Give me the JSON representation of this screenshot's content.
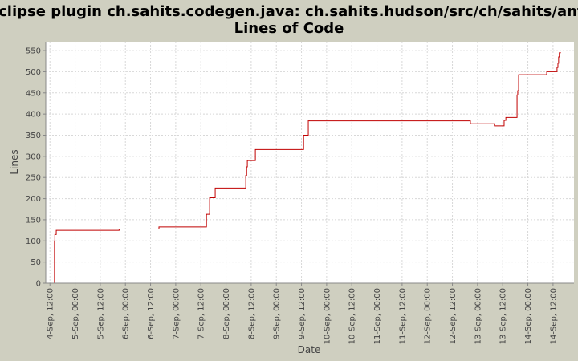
{
  "chart_data": {
    "type": "step",
    "title": "Eclipse plugin ch.sahits.codegen.java: ch.sahits.hudson/src/ch/sahits/ant/",
    "subtitle": "Lines of Code",
    "x_label": "Date",
    "y_label": "Lines",
    "x": [
      "4-Sep, 14:00",
      "4-Sep, 14:10",
      "4-Sep, 14:20",
      "4-Sep, 15:00",
      "5-Sep, 21:00",
      "6-Sep, 16:00",
      "7-Sep, 14:40",
      "7-Sep, 16:10",
      "7-Sep, 18:50",
      "8-Sep, 09:25",
      "8-Sep, 09:50",
      "8-Sep, 10:10",
      "8-Sep, 14:00",
      "9-Sep, 13:00",
      "9-Sep, 15:15",
      "9-Sep, 15:40",
      "12-Sep, 20:35",
      "13-Sep, 08:00",
      "13-Sep, 12:40",
      "13-Sep, 13:30",
      "13-Sep, 18:50",
      "13-Sep, 19:10",
      "13-Sep, 19:35",
      "14-Sep, 09:00",
      "14-Sep, 13:55",
      "14-Sep, 14:20",
      "14-Sep, 14:40",
      "14-Sep, 15:00",
      "14-Sep, 15:45"
    ],
    "series": [
      {
        "name": "Lines",
        "color": "#c00000",
        "values": [
          0,
          100,
          115,
          125,
          128,
          133,
          163,
          202,
          225,
          255,
          275,
          290,
          316,
          350,
          386,
          384,
          377,
          372,
          385,
          392,
          445,
          455,
          493,
          500,
          510,
          520,
          535,
          545,
          545
        ]
      }
    ],
    "xlim": [
      "4-Sep, 10:00",
      "14-Sep, 22:00"
    ],
    "xticks": [
      "4-Sep, 12:00",
      "5-Sep, 00:00",
      "5-Sep, 12:00",
      "6-Sep, 00:00",
      "6-Sep, 12:00",
      "7-Sep, 00:00",
      "7-Sep, 12:00",
      "8-Sep, 00:00",
      "8-Sep, 12:00",
      "9-Sep, 00:00",
      "9-Sep, 12:00",
      "10-Sep, 00:00",
      "10-Sep, 12:00",
      "11-Sep, 00:00",
      "11-Sep, 12:00",
      "12-Sep, 00:00",
      "12-Sep, 12:00",
      "13-Sep, 00:00",
      "13-Sep, 12:00",
      "14-Sep, 00:00",
      "14-Sep, 12:00"
    ],
    "ylim": [
      0,
      571
    ],
    "yticks": [
      0,
      50,
      100,
      150,
      200,
      250,
      300,
      350,
      400,
      450,
      500,
      550
    ],
    "grid": true
  }
}
